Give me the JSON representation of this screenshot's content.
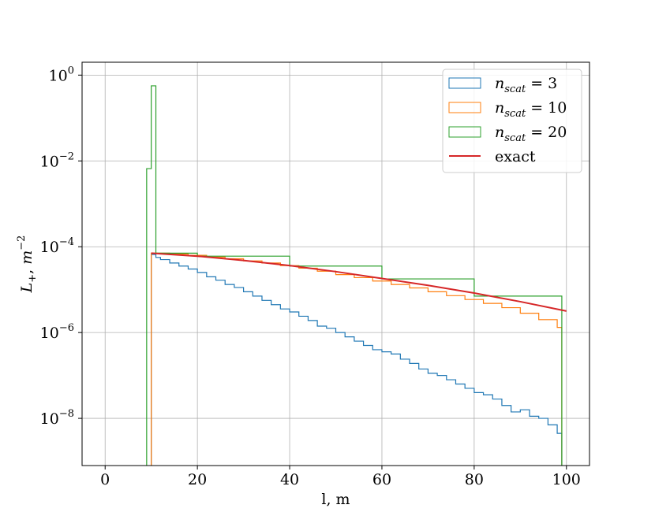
{
  "chart_data": {
    "type": "line",
    "xlabel": "l, m",
    "ylabel_base": "L",
    "ylabel_sub": "+",
    "ylabel_unit_base": "m",
    "ylabel_unit_exp": "−2",
    "xlim": [
      -5,
      105
    ],
    "ylim_log10": [
      -9.1,
      0.3
    ],
    "y_scale": "log",
    "grid": true,
    "legend_position": "top-right",
    "x_ticks": [
      0,
      20,
      40,
      60,
      80,
      100
    ],
    "x_tick_labels": [
      "0",
      "20",
      "40",
      "60",
      "80",
      "100"
    ],
    "y_ticks_exp": [
      0,
      -2,
      -4,
      -6,
      -8
    ],
    "y_tick_base": "10",
    "y_tick_exps": [
      "0",
      "−2",
      "−4",
      "−6",
      "−8"
    ],
    "series": [
      {
        "name_base": "n",
        "name_sub": "scat",
        "name_rest": " = 3",
        "style": "step",
        "color": "#1f77b4",
        "x": [
          10,
          11,
          12,
          14,
          16,
          18,
          20,
          22,
          24,
          26,
          28,
          30,
          32,
          34,
          36,
          38,
          40,
          42,
          44,
          46,
          48,
          50,
          52,
          54,
          56,
          58,
          60,
          62,
          64,
          66,
          68,
          70,
          72,
          74,
          76,
          78,
          80,
          82,
          84,
          86,
          88,
          90,
          92,
          94,
          96,
          98,
          99
        ],
        "y_log10": [
          -4.18,
          -4.25,
          -4.3,
          -4.38,
          -4.45,
          -4.52,
          -4.6,
          -4.7,
          -4.78,
          -4.88,
          -4.95,
          -5.05,
          -5.15,
          -5.25,
          -5.35,
          -5.45,
          -5.52,
          -5.62,
          -5.72,
          -5.85,
          -5.9,
          -6.0,
          -6.1,
          -6.2,
          -6.3,
          -6.4,
          -6.45,
          -6.5,
          -6.62,
          -6.72,
          -6.85,
          -6.95,
          -7.0,
          -7.1,
          -7.2,
          -7.3,
          -7.4,
          -7.45,
          -7.55,
          -7.7,
          -7.85,
          -7.8,
          -7.95,
          -8.0,
          -8.15,
          -8.35,
          -8.65
        ]
      },
      {
        "name_base": "n",
        "name_sub": "scat",
        "name_rest": " = 10",
        "style": "step",
        "color": "#ff7f0e",
        "x": [
          10,
          14,
          18,
          22,
          26,
          30,
          34,
          38,
          42,
          46,
          50,
          54,
          58,
          62,
          66,
          70,
          74,
          78,
          82,
          86,
          90,
          94,
          98,
          99
        ],
        "y_log10": [
          -4.15,
          -4.17,
          -4.2,
          -4.24,
          -4.28,
          -4.33,
          -4.38,
          -4.44,
          -4.5,
          -4.57,
          -4.65,
          -4.72,
          -4.8,
          -4.88,
          -4.96,
          -5.05,
          -5.14,
          -5.23,
          -5.32,
          -5.42,
          -5.55,
          -5.7,
          -5.88,
          -5.95
        ]
      },
      {
        "name_base": "n",
        "name_sub": "scat",
        "name_rest": " = 20",
        "style": "step",
        "color": "#2ca02c",
        "x": [
          9,
          10,
          11,
          20,
          40,
          60,
          80,
          99
        ],
        "y_log10": [
          -2.18,
          -0.25,
          -4.15,
          -4.22,
          -4.45,
          -4.75,
          -5.15,
          -5.62
        ]
      },
      {
        "name_base": "",
        "name_sub": "",
        "name_rest": "exact",
        "style": "line",
        "color": "#d62728",
        "x": [
          10,
          20,
          30,
          40,
          50,
          60,
          70,
          80,
          90,
          100
        ],
        "y_log10": [
          -4.15,
          -4.22,
          -4.32,
          -4.44,
          -4.58,
          -4.74,
          -4.9,
          -5.08,
          -5.28,
          -5.5
        ]
      }
    ]
  }
}
